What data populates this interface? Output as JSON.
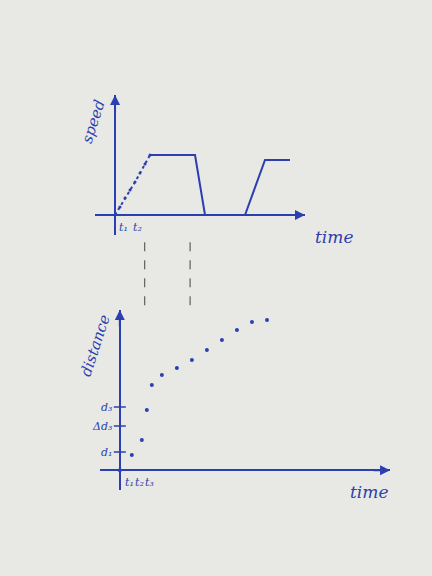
{
  "chart_data": [
    {
      "type": "line",
      "y_label": "speed",
      "x_label": "time",
      "tick_labels": false,
      "xlim": [
        -2,
        19
      ],
      "ylim": [
        -2,
        12
      ],
      "x": [
        0,
        0.5,
        1,
        1.5,
        2,
        2.5,
        3,
        3.5,
        8,
        9,
        13,
        15,
        17.5
      ],
      "series": [
        {
          "color": "#2b3fb0",
          "line_style": "dotted",
          "marker": "circle",
          "values": [
            0,
            0.8,
            1.7,
            2.5,
            3.3,
            4.2,
            5.1,
            6,
            null,
            null,
            null,
            null,
            null
          ]
        },
        {
          "color": "#2b3fb0",
          "line_style": "solid",
          "values": [
            null,
            null,
            null,
            null,
            null,
            null,
            null,
            6,
            6,
            0,
            0,
            5.5,
            5.5
          ]
        }
      ],
      "annotations": [
        {
          "text": "t₁",
          "x": 0.8,
          "y": 0
        },
        {
          "text": "t₂",
          "x": 2.2,
          "y": 0
        }
      ]
    },
    {
      "type": "scatter",
      "y_label": "distance",
      "x_label": "time",
      "tick_labels": false,
      "xlim": [
        -2,
        27
      ],
      "ylim": [
        -2,
        16
      ],
      "x": [
        0,
        1.2,
        2.2,
        2.7,
        3.2,
        4.2,
        5.7,
        7.2,
        8.7,
        10.2,
        11.7,
        13.2,
        14.7
      ],
      "series": [
        {
          "color": "#2b3fb0",
          "marker": "circle",
          "values": [
            0,
            1.5,
            3,
            6,
            8.5,
            9.5,
            10.2,
            11,
            12,
            13,
            14,
            14.8,
            15
          ]
        }
      ],
      "annotations": [
        {
          "text": "t₁",
          "x": 1,
          "y": 0
        },
        {
          "text": "t₂",
          "x": 2,
          "y": 0
        },
        {
          "text": "t₃",
          "x": 3,
          "y": 0
        },
        {
          "text": "d₁",
          "x": 0,
          "y": 1.8
        },
        {
          "text": "Δd₃",
          "x": 0,
          "y": 4.4
        },
        {
          "text": "d₃",
          "x": 0,
          "y": 6.3
        }
      ]
    }
  ]
}
